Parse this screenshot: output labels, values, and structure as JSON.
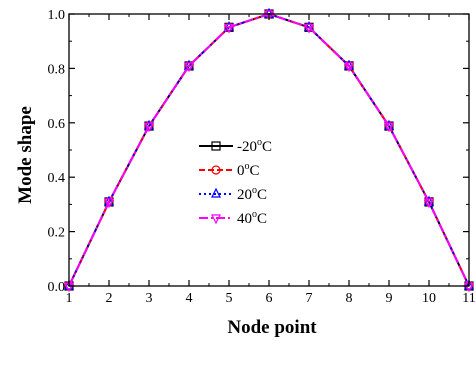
{
  "chart_data": {
    "type": "line",
    "xlabel": "Node point",
    "ylabel": "Mode shape",
    "xlim": [
      1,
      11
    ],
    "ylim": [
      0.0,
      1.0
    ],
    "x_ticks": [
      "1",
      "2",
      "3",
      "4",
      "5",
      "6",
      "7",
      "8",
      "9",
      "10",
      "11"
    ],
    "y_ticks": [
      "0.0",
      "0.2",
      "0.4",
      "0.6",
      "0.8",
      "1.0"
    ],
    "grid": false,
    "legend_placement": "center",
    "x": [
      1,
      2,
      3,
      4,
      5,
      6,
      7,
      8,
      9,
      10,
      11
    ],
    "series": [
      {
        "label_prefix": "-20",
        "label_sup": "o",
        "label_suffix": "C",
        "color": "#000000",
        "dash": "solid",
        "marker": "square",
        "values": [
          0.0,
          0.309,
          0.588,
          0.809,
          0.951,
          1.0,
          0.951,
          0.809,
          0.588,
          0.309,
          0.0
        ]
      },
      {
        "label_prefix": "0",
        "label_sup": "o",
        "label_suffix": "C",
        "color": "#ff0000",
        "dash": "dash",
        "marker": "circle",
        "values": [
          0.0,
          0.309,
          0.588,
          0.809,
          0.951,
          1.0,
          0.951,
          0.809,
          0.588,
          0.309,
          0.0
        ]
      },
      {
        "label_prefix": "20",
        "label_sup": "o",
        "label_suffix": "C",
        "color": "#0000ff",
        "dash": "dot",
        "marker": "triangle-up",
        "values": [
          0.0,
          0.309,
          0.588,
          0.809,
          0.951,
          1.0,
          0.951,
          0.809,
          0.588,
          0.309,
          0.0
        ]
      },
      {
        "label_prefix": "40",
        "label_sup": "o",
        "label_suffix": "C",
        "color": "#ff00ff",
        "dash": "dashdot",
        "marker": "triangle-down",
        "values": [
          0.0,
          0.309,
          0.588,
          0.809,
          0.951,
          1.0,
          0.951,
          0.809,
          0.588,
          0.309,
          0.0
        ]
      }
    ]
  }
}
